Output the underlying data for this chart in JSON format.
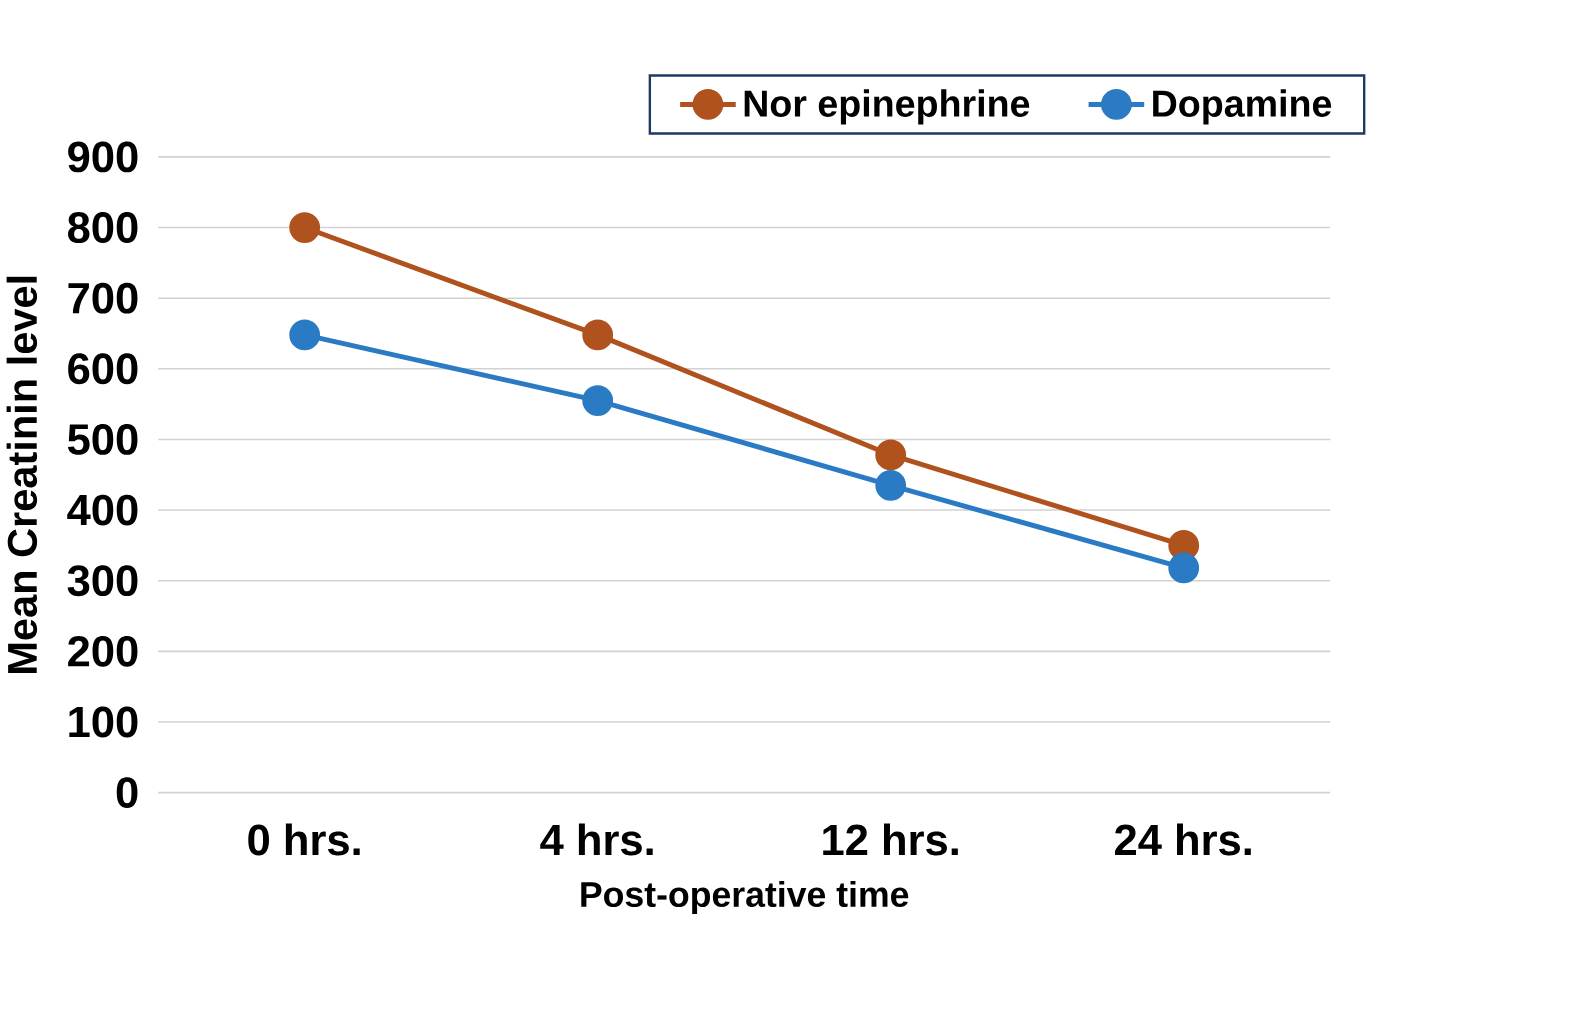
{
  "chart_data": {
    "type": "line",
    "xlabel": "Post-operative time",
    "ylabel": "Mean Creatinin level",
    "categories": [
      "0 hrs.",
      "4 hrs.",
      "12 hrs.",
      "24 hrs."
    ],
    "series": [
      {
        "name": "Nor epinephrine",
        "color": "#b0521e",
        "values": [
          800,
          648,
          478,
          350
        ]
      },
      {
        "name": "Dopamine",
        "color": "#2a7bc4",
        "values": [
          648,
          555,
          435,
          318
        ]
      }
    ],
    "ylim": [
      0,
      900
    ],
    "yticks": [
      0,
      100,
      200,
      300,
      400,
      500,
      600,
      700,
      800,
      900
    ],
    "grid": "y",
    "legend": "top right",
    "marker": "circle",
    "line_style": "solid"
  }
}
